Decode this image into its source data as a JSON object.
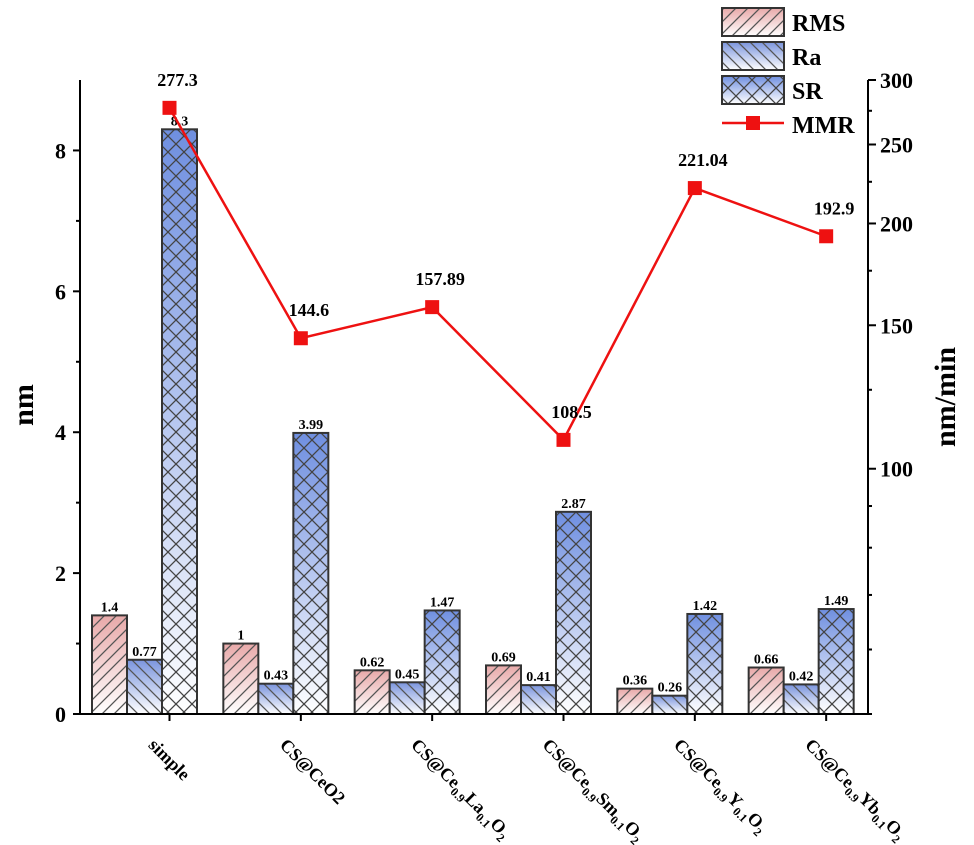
{
  "chart_data": {
    "type": "bar",
    "categories": [
      "simple",
      "CS@CeO2",
      "CS@Ce0.9La0.1O2",
      "CS@Ce0.9Sm0.1O2",
      "CS@Ce0.9Y0.1O2",
      "CS@Ce0.9Yb0.1O2"
    ],
    "category_display": [
      [
        {
          "t": "simple",
          "s": ""
        }
      ],
      [
        {
          "t": "CS@CeO2",
          "s": ""
        }
      ],
      [
        {
          "t": "CS@Ce",
          "s": ""
        },
        {
          "t": "0.9",
          "s": "sub"
        },
        {
          "t": "La",
          "s": ""
        },
        {
          "t": "0.1",
          "s": "sub"
        },
        {
          "t": "O",
          "s": ""
        },
        {
          "t": "2",
          "s": "sub"
        }
      ],
      [
        {
          "t": "CS@Ce",
          "s": ""
        },
        {
          "t": "0.9",
          "s": "sub"
        },
        {
          "t": "Sm",
          "s": ""
        },
        {
          "t": "0.1",
          "s": "sub"
        },
        {
          "t": "O",
          "s": ""
        },
        {
          "t": "2",
          "s": "sub"
        }
      ],
      [
        {
          "t": "CS@Ce",
          "s": ""
        },
        {
          "t": "0.9",
          "s": "sub"
        },
        {
          "t": "Y",
          "s": ""
        },
        {
          "t": "0.1",
          "s": "sub"
        },
        {
          "t": "O",
          "s": ""
        },
        {
          "t": "2",
          "s": "sub"
        }
      ],
      [
        {
          "t": "CS@Ce",
          "s": ""
        },
        {
          "t": "0.9",
          "s": "sub"
        },
        {
          "t": "Yb",
          "s": ""
        },
        {
          "t": "0.1",
          "s": "sub"
        },
        {
          "t": "O",
          "s": ""
        },
        {
          "t": "2",
          "s": "sub"
        }
      ]
    ],
    "series": [
      {
        "name": "RMS",
        "type": "bar",
        "axis": "left",
        "values": [
          1.4,
          1,
          0.62,
          0.69,
          0.36,
          0.66
        ],
        "labels": [
          "1.4",
          "1",
          "0.62",
          "0.69",
          "0.36",
          "0.66"
        ],
        "color": "#e8a9a9",
        "pattern": "diag-up"
      },
      {
        "name": "Ra",
        "type": "bar",
        "axis": "left",
        "values": [
          0.77,
          0.43,
          0.45,
          0.41,
          0.26,
          0.42
        ],
        "labels": [
          "0.77",
          "0.43",
          "0.45",
          "0.41",
          "0.26",
          "0.42"
        ],
        "color": "#7b95dd",
        "pattern": "diag-down"
      },
      {
        "name": "SR",
        "type": "bar",
        "axis": "left",
        "values": [
          8.3,
          3.99,
          1.47,
          2.87,
          1.42,
          1.49
        ],
        "labels": [
          "8.3",
          "3.99",
          "1.47",
          "2.87",
          "1.42",
          "1.49"
        ],
        "color": "#6f8fe0",
        "pattern": "cross"
      },
      {
        "name": "MMR",
        "type": "line",
        "axis": "right",
        "values": [
          277.3,
          144.6,
          157.89,
          108.5,
          221.04,
          192.9
        ],
        "labels": [
          "277.3",
          "144.6",
          "157.89",
          "108.5",
          "221.04",
          "192.9"
        ],
        "color": "#ee1111"
      }
    ],
    "ylabel": "nm",
    "y2label": "nm/min",
    "ylim": [
      0,
      9
    ],
    "yticks": [
      "0",
      "2",
      "4",
      "6",
      "8"
    ],
    "y2scale": "log",
    "y2lim": [
      50,
      300
    ],
    "y2ticks": [
      "100",
      "150",
      "200",
      "250",
      "300"
    ],
    "grid": false,
    "legend_position": "top-right"
  }
}
